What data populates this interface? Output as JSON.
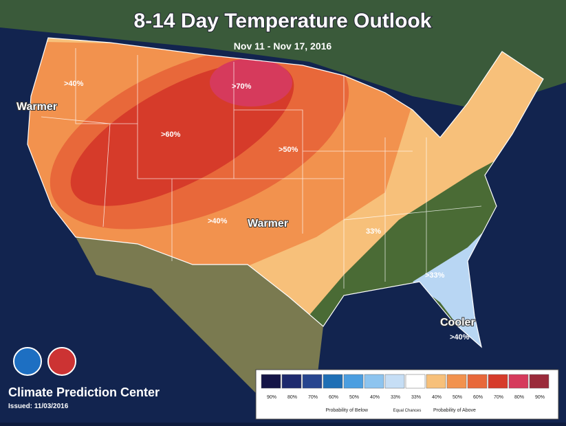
{
  "header": {
    "title": "8-14 Day Temperature Outlook",
    "subtitle": "Nov 11 - Nov 17, 2016"
  },
  "labels": [
    ">40%",
    "Warmer",
    ">70%",
    ">60%",
    ">50%",
    ">40%",
    "Warmer",
    "33%",
    ">33%",
    "Cooler",
    ">40%"
  ],
  "footer": {
    "agency": "Climate Prediction Center",
    "issued": "Issued: 11/03/2016"
  },
  "legend": {
    "items": [
      {
        "label": "90%",
        "color": "#141446"
      },
      {
        "label": "80%",
        "color": "#1e2a6e"
      },
      {
        "label": "70%",
        "color": "#27458f"
      },
      {
        "label": "60%",
        "color": "#1f6fb5"
      },
      {
        "label": "50%",
        "color": "#4b9ee0"
      },
      {
        "label": "40%",
        "color": "#8dc4ef"
      },
      {
        "label": "33%",
        "color": "#c6def5"
      },
      {
        "label": "33%",
        "color": "#ffffff"
      },
      {
        "label": "40%",
        "color": "#f7c07a"
      },
      {
        "label": "50%",
        "color": "#f2924e"
      },
      {
        "label": "60%",
        "color": "#e8683a"
      },
      {
        "label": "70%",
        "color": "#d63b2a"
      },
      {
        "label": "80%",
        "color": "#d63a5c"
      },
      {
        "label": "90%",
        "color": "#9a2a3a"
      }
    ],
    "below": "Probability of Below",
    "equal": "Equal Chances",
    "above": "Probability of Above"
  }
}
